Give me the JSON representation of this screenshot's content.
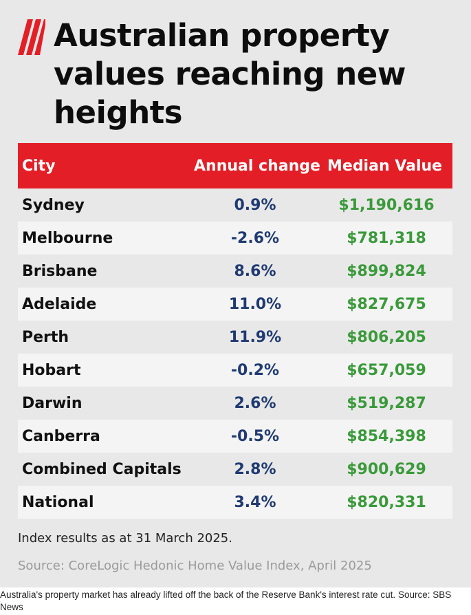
{
  "graphic": {
    "title": "Australian property values reaching new heights",
    "logo_icon": "sbs-stripes-logo",
    "brand_color": "#e31e26",
    "note": "Index results as at 31 March 2025.",
    "source": "Source: CoreLogic Hedonic Home Value Index, April 2025"
  },
  "caption": "Australia's property market has already lifted off the back of the Reserve Bank's interest rate cut. Source: SBS News",
  "chart_data": {
    "type": "table",
    "title": "Australian property values reaching new heights",
    "columns": [
      "City",
      "Annual change",
      "Median Value"
    ],
    "rows": [
      {
        "city": "Sydney",
        "change": "0.9%",
        "value": "$1,190,616"
      },
      {
        "city": "Melbourne",
        "change": "-2.6%",
        "value": "$781,318"
      },
      {
        "city": "Brisbane",
        "change": "8.6%",
        "value": "$899,824"
      },
      {
        "city": "Adelaide",
        "change": "11.0%",
        "value": "$827,675"
      },
      {
        "city": "Perth",
        "change": "11.9%",
        "value": "$806,205"
      },
      {
        "city": "Hobart",
        "change": "-0.2%",
        "value": "$657,059"
      },
      {
        "city": "Darwin",
        "change": "2.6%",
        "value": "$519,287"
      },
      {
        "city": "Canberra",
        "change": "-0.5%",
        "value": "$854,398"
      },
      {
        "city": "Combined Capitals",
        "change": "2.8%",
        "value": "$900,629"
      },
      {
        "city": "National",
        "change": "3.4%",
        "value": "$820,331"
      }
    ]
  }
}
